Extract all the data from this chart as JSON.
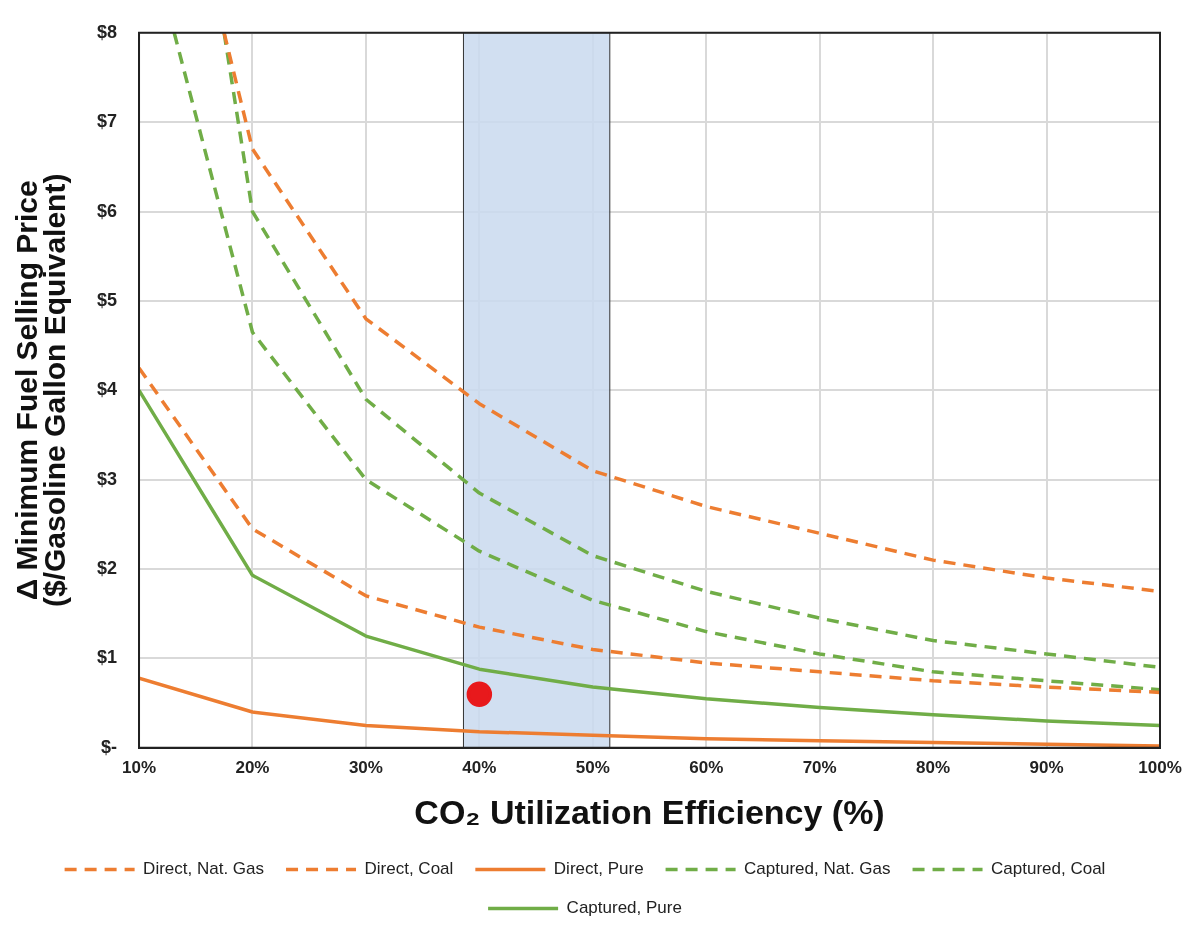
{
  "chart_data": {
    "type": "line",
    "xlabel": "CO₂ Utilization Efficiency (%)",
    "ylabel": "Δ Minimum Fuel Selling Price\n($/Gasoline Gallon Equivalent)",
    "x": [
      10,
      20,
      30,
      40,
      50,
      60,
      70,
      80,
      90,
      100
    ],
    "xlim": [
      10,
      100
    ],
    "xticks": [
      {
        "value": 10,
        "label": "10%"
      },
      {
        "value": 20,
        "label": "20%"
      },
      {
        "value": 30,
        "label": "30%"
      },
      {
        "value": 40,
        "label": "40%"
      },
      {
        "value": 50,
        "label": "50%"
      },
      {
        "value": 60,
        "label": "60%"
      },
      {
        "value": 70,
        "label": "70%"
      },
      {
        "value": 80,
        "label": "80%"
      },
      {
        "value": 90,
        "label": "90%"
      },
      {
        "value": 100,
        "label": "100%"
      }
    ],
    "ylim": [
      0,
      8
    ],
    "yticks": [
      {
        "value": 0,
        "label": "$-"
      },
      {
        "value": 1,
        "label": "$1"
      },
      {
        "value": 2,
        "label": "$2"
      },
      {
        "value": 3,
        "label": "$3"
      },
      {
        "value": 4,
        "label": "$4"
      },
      {
        "value": 5,
        "label": "$5"
      },
      {
        "value": 6,
        "label": "$6"
      },
      {
        "value": 7,
        "label": "$7"
      },
      {
        "value": 8,
        "label": "$8"
      }
    ],
    "grid": true,
    "legend": "bottom",
    "marker": "none",
    "bands": [
      {
        "axis": "x",
        "from": 38.6,
        "to": 51.5,
        "color": "#c9d9ee"
      }
    ],
    "series": [
      {
        "name": "Direct, Nat. Gas",
        "color": "#ed7d31",
        "line_style": "dashed",
        "x": [
          17.5,
          20,
          30,
          40,
          50,
          60,
          70,
          80,
          90,
          100
        ],
        "values": [
          8,
          6.7,
          4.8,
          3.85,
          3.1,
          2.7,
          2.4,
          2.1,
          1.9,
          1.75
        ]
      },
      {
        "name": "Direct, Coal",
        "color": "#ed7d31",
        "line_style": "dashed",
        "values": [
          4.25,
          2.45,
          1.7,
          1.35,
          1.1,
          0.95,
          0.85,
          0.75,
          0.68,
          0.62
        ]
      },
      {
        "name": "Direct, Pure",
        "color": "#ed7d31",
        "line_style": "solid",
        "values": [
          0.78,
          0.4,
          0.25,
          0.18,
          0.14,
          0.1,
          0.08,
          0.06,
          0.04,
          0.02
        ]
      },
      {
        "name": "Captured, Nat. Gas",
        "color": "#70ad47",
        "line_style": "dashed",
        "x": [
          17.5,
          20,
          30,
          40,
          50,
          60,
          70,
          80,
          90,
          100
        ],
        "values": [
          8,
          6.0,
          3.9,
          2.85,
          2.15,
          1.75,
          1.45,
          1.2,
          1.05,
          0.9
        ]
      },
      {
        "name": "Captured, Coal",
        "color": "#70ad47",
        "line_style": "dashed",
        "x": [
          13.1,
          20,
          30,
          40,
          50,
          60,
          70,
          80,
          90,
          100
        ],
        "values": [
          8,
          4.65,
          3.0,
          2.2,
          1.65,
          1.3,
          1.05,
          0.85,
          0.75,
          0.65
        ]
      },
      {
        "name": "Captured, Pure",
        "color": "#70ad47",
        "line_style": "solid",
        "values": [
          4.0,
          1.93,
          1.25,
          0.88,
          0.68,
          0.55,
          0.45,
          0.37,
          0.3,
          0.25
        ]
      },
      {
        "type": "scatter",
        "color": "#e8191c",
        "marker": "circle",
        "x": [
          40
        ],
        "values": [
          0.6
        ]
      }
    ]
  }
}
